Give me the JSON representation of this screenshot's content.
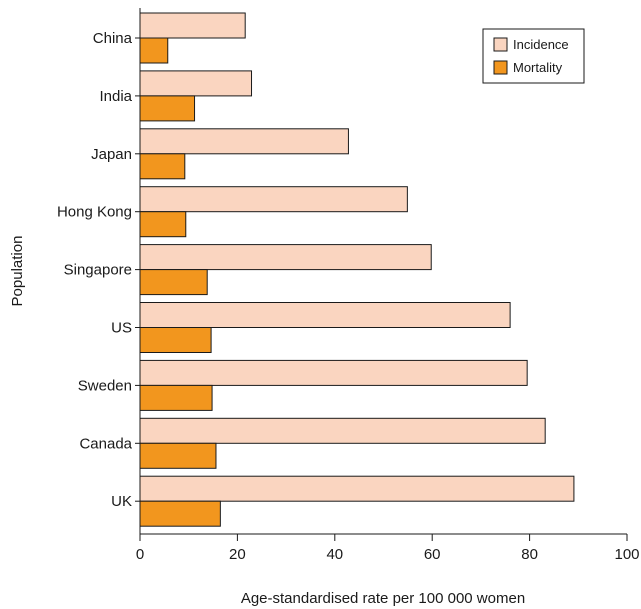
{
  "chart_data": {
    "type": "bar",
    "orientation": "horizontal",
    "categories": [
      "China",
      "India",
      "Japan",
      "Hong Kong",
      "Singapore",
      "US",
      "Sweden",
      "Canada",
      "UK"
    ],
    "series": [
      {
        "name": "Incidence",
        "color": "#fad5c0",
        "values": [
          21.6,
          22.9,
          42.8,
          54.9,
          59.8,
          76.0,
          79.5,
          83.2,
          89.1
        ]
      },
      {
        "name": "Mortality",
        "color": "#f2961e",
        "values": [
          5.7,
          11.2,
          9.2,
          9.4,
          13.8,
          14.6,
          14.8,
          15.6,
          16.5
        ]
      }
    ],
    "xlabel": "Age-standardised rate per 100 000 women",
    "ylabel": "Population",
    "xlim": [
      0,
      100
    ],
    "xticks": [
      0,
      20,
      40,
      60,
      80,
      100
    ],
    "legend_position": "top-right",
    "grid": false
  }
}
